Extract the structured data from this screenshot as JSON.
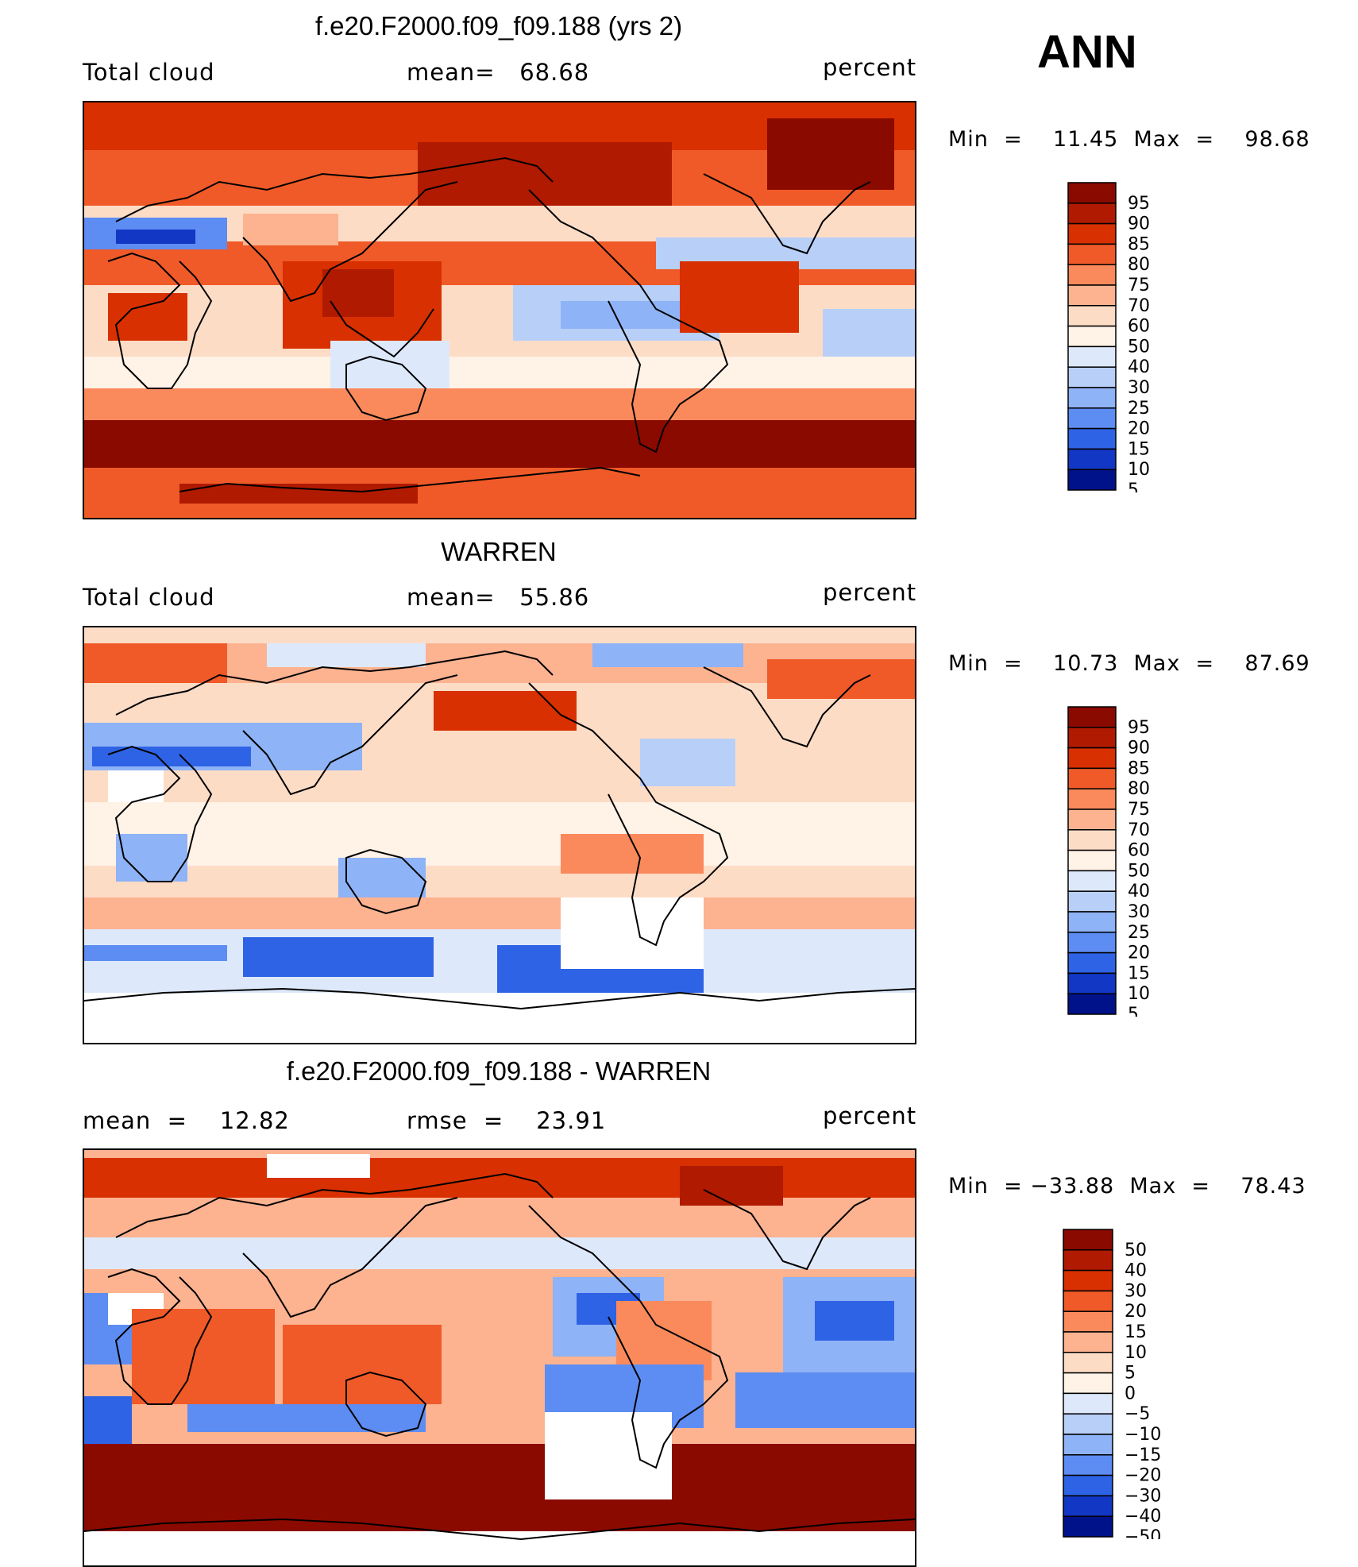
{
  "season": "ANN",
  "units_label": "percent",
  "panels": [
    {
      "title": "f.e20.F2000.f09_f09.188 (yrs 2)",
      "left_label": "Total cloud",
      "center_label": "mean=   68.68",
      "minmax": "Min  =    11.45  Max  =    98.68",
      "colorbar_labels": [
        "95",
        "90",
        "85",
        "80",
        "75",
        "70",
        "60",
        "50",
        "40",
        "30",
        "25",
        "20",
        "15",
        "10",
        "5"
      ]
    },
    {
      "title": "WARREN",
      "left_label": "Total cloud",
      "center_label": "mean=   55.86",
      "minmax": "Min  =    10.73  Max  =    87.69",
      "colorbar_labels": [
        "95",
        "90",
        "85",
        "80",
        "75",
        "70",
        "60",
        "50",
        "40",
        "30",
        "25",
        "20",
        "15",
        "10",
        "5"
      ]
    },
    {
      "title": "f.e20.F2000.f09_f09.188 - WARREN",
      "left_label": "mean  =    12.82",
      "center_label": "rmse  =    23.91",
      "minmax": "Min  = −33.88  Max  =    78.43",
      "colorbar_labels": [
        "50",
        "40",
        "30",
        "20",
        "15",
        "10",
        "5",
        "0",
        "−5",
        "−10",
        "−15",
        "−20",
        "−30",
        "−40",
        "−50"
      ]
    }
  ],
  "colors": {
    "cloud_scale": [
      "#8b0a00",
      "#b01a00",
      "#d83000",
      "#f05a28",
      "#fa8a5c",
      "#fdb290",
      "#fddcc6",
      "#fff2e6",
      "#dde9fb",
      "#b8cff8",
      "#8eb3f6",
      "#5d8df2",
      "#2f63e6",
      "#1237c5",
      "#00128a"
    ],
    "diff_scale": [
      "#8b0a00",
      "#b01a00",
      "#d83000",
      "#f05a28",
      "#fa8a5c",
      "#fdb290",
      "#fddcc6",
      "#fff2e6",
      "#dde9fb",
      "#b8cff8",
      "#8eb3f6",
      "#5d8df2",
      "#2f63e6",
      "#1237c5",
      "#00128a"
    ],
    "missing": "#ffffff",
    "coastline": "#000000"
  }
}
